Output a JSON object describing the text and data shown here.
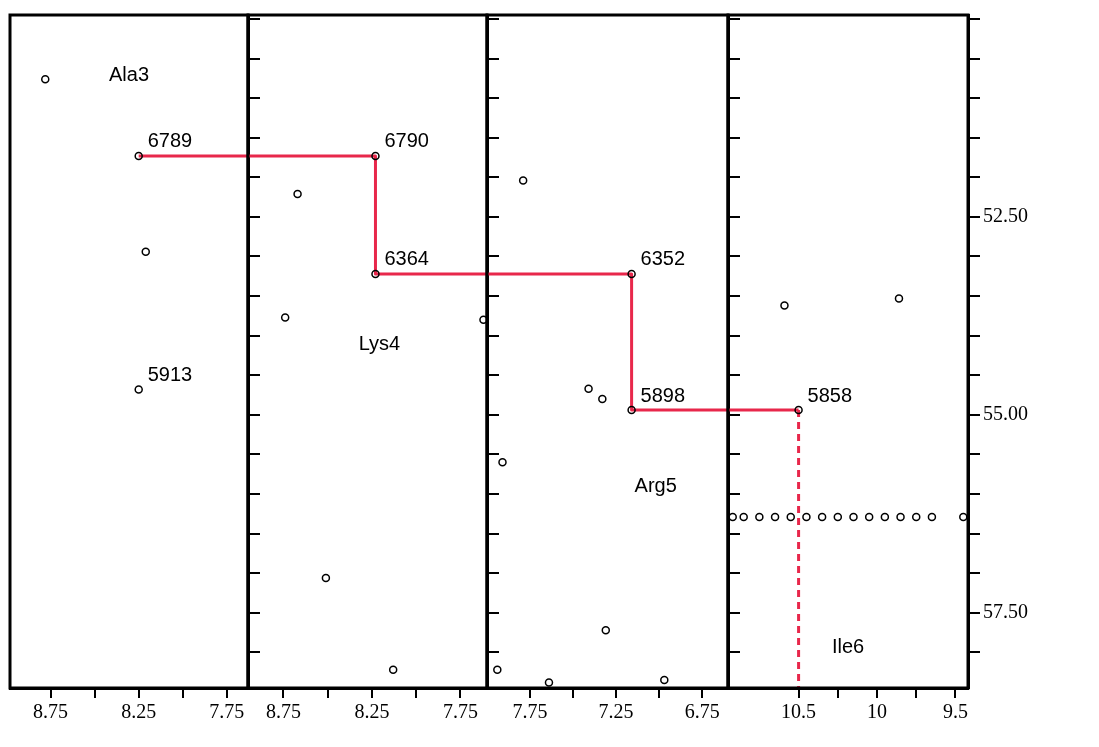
{
  "chart_data": [
    {
      "type": "scatter",
      "xlim": [
        8.98,
        7.63
      ],
      "ylim": [
        58.45,
        49.95
      ],
      "xticks": [
        8.75,
        {
          "value": 8.5,
          "label": null
        },
        8.25,
        {
          "value": 8.0,
          "label": null
        },
        7.75
      ],
      "yticks": [
        {
          "value": 50.0,
          "label": null
        },
        {
          "value": 50.5,
          "label": null
        },
        {
          "value": 51.0,
          "label": null
        },
        {
          "value": 51.5,
          "label": null
        },
        {
          "value": 52.0,
          "label": null
        },
        {
          "value": 52.5,
          "label": null
        },
        {
          "value": 53.0,
          "label": null
        },
        {
          "value": 53.5,
          "label": null
        },
        {
          "value": 54.0,
          "label": null
        },
        {
          "value": 54.5,
          "label": null
        },
        {
          "value": 55.0,
          "label": null
        },
        {
          "value": 55.5,
          "label": null
        },
        {
          "value": 56.0,
          "label": null
        },
        {
          "value": 56.5,
          "label": null
        },
        {
          "value": 57.0,
          "label": null
        },
        {
          "value": 57.5,
          "label": null
        },
        {
          "value": 58.0,
          "label": null
        }
      ],
      "tick_labels": "x",
      "grid": false,
      "legend": false,
      "series": [
        {
          "marker": "circle",
          "color": "#000000",
          "x": [
            8.78,
            8.25,
            8.21,
            8.25
          ],
          "values": [
            50.76,
            51.73,
            52.94,
            54.68
          ]
        },
        {
          "type": "line",
          "marker": "none",
          "line_style": "solid",
          "color": "#e8274b",
          "x": [
            8.25,
            7.63
          ],
          "values": [
            51.73,
            51.73
          ]
        }
      ],
      "annotations": [
        "Ala3",
        {
          "text": "6789",
          "x": 8.25,
          "y": 51.73
        },
        {
          "text": "5913",
          "x": 8.25,
          "y": 54.68
        }
      ]
    },
    {
      "type": "scatter",
      "xlim": [
        8.95,
        7.6
      ],
      "ylim": [
        58.45,
        49.95
      ],
      "xticks": [
        8.75,
        {
          "value": 8.5,
          "label": null
        },
        8.25,
        {
          "value": 8.0,
          "label": null
        },
        7.75
      ],
      "yticks": [
        {
          "value": 50.0,
          "label": null
        },
        {
          "value": 50.5,
          "label": null
        },
        {
          "value": 51.0,
          "label": null
        },
        {
          "value": 51.5,
          "label": null
        },
        {
          "value": 52.0,
          "label": null
        },
        {
          "value": 52.5,
          "label": null
        },
        {
          "value": 53.0,
          "label": null
        },
        {
          "value": 53.5,
          "label": null
        },
        {
          "value": 54.0,
          "label": null
        },
        {
          "value": 54.5,
          "label": null
        },
        {
          "value": 55.0,
          "label": null
        },
        {
          "value": 55.5,
          "label": null
        },
        {
          "value": 56.0,
          "label": null
        },
        {
          "value": 56.5,
          "label": null
        },
        {
          "value": 57.0,
          "label": null
        },
        {
          "value": 57.5,
          "label": null
        },
        {
          "value": 58.0,
          "label": null
        }
      ],
      "tick_labels": "x",
      "grid": false,
      "legend": false,
      "series": [
        {
          "marker": "circle",
          "color": "#000000",
          "x": [
            8.23,
            8.67,
            8.23,
            8.74,
            8.51,
            8.13,
            7.62
          ],
          "values": [
            51.73,
            52.21,
            53.22,
            53.77,
            57.06,
            58.22,
            53.8
          ]
        },
        {
          "type": "line",
          "marker": "none",
          "line_style": "solid",
          "color": "#e8274b",
          "x": [
            8.95,
            8.23,
            8.23,
            7.6
          ],
          "values": [
            51.73,
            51.73,
            53.22,
            53.22
          ]
        }
      ],
      "annotations": [
        {
          "text": "6790",
          "x": 8.23,
          "y": 51.73
        },
        {
          "text": "6364",
          "x": 8.23,
          "y": 53.22
        },
        "Lys4"
      ]
    },
    {
      "type": "scatter",
      "xlim": [
        8.0,
        6.6
      ],
      "ylim": [
        58.45,
        49.95
      ],
      "xticks": [
        7.75,
        {
          "value": 7.5,
          "label": null
        },
        7.25,
        {
          "value": 7.0,
          "label": null
        },
        6.75
      ],
      "yticks": [
        {
          "value": 50.0,
          "label": null
        },
        {
          "value": 50.5,
          "label": null
        },
        {
          "value": 51.0,
          "label": null
        },
        {
          "value": 51.5,
          "label": null
        },
        {
          "value": 52.0,
          "label": null
        },
        {
          "value": 52.5,
          "label": null
        },
        {
          "value": 53.0,
          "label": null
        },
        {
          "value": 53.5,
          "label": null
        },
        {
          "value": 54.0,
          "label": null
        },
        {
          "value": 54.5,
          "label": null
        },
        {
          "value": 55.0,
          "label": null
        },
        {
          "value": 55.5,
          "label": null
        },
        {
          "value": 56.0,
          "label": null
        },
        {
          "value": 56.5,
          "label": null
        },
        {
          "value": 57.0,
          "label": null
        },
        {
          "value": 57.5,
          "label": null
        },
        {
          "value": 58.0,
          "label": null
        }
      ],
      "tick_labels": "x",
      "grid": false,
      "legend": false,
      "series": [
        {
          "marker": "circle",
          "color": "#000000",
          "x": [
            7.79,
            7.91,
            7.41,
            7.33,
            7.16,
            7.16,
            7.31,
            7.94,
            7.64,
            6.97
          ],
          "values": [
            52.04,
            55.6,
            54.67,
            54.8,
            53.22,
            54.94,
            57.72,
            58.22,
            58.38,
            58.35
          ]
        },
        {
          "type": "line",
          "marker": "none",
          "line_style": "solid",
          "color": "#e8274b",
          "x": [
            8.0,
            7.16,
            7.16,
            6.6
          ],
          "values": [
            53.22,
            53.22,
            54.94,
            54.94
          ]
        }
      ],
      "annotations": [
        {
          "text": "6352",
          "x": 7.16,
          "y": 53.22
        },
        {
          "text": "5898",
          "x": 7.16,
          "y": 54.94
        },
        "Arg5"
      ]
    },
    {
      "type": "scatter",
      "xlim": [
        10.95,
        9.42
      ],
      "ylim": [
        58.45,
        49.95
      ],
      "xticks": [
        10.5,
        {
          "value": 10.25,
          "label": null
        },
        10.0,
        {
          "value": 9.75,
          "label": null
        },
        9.5
      ],
      "yticks": [
        {
          "value": 50.0,
          "label": null
        },
        {
          "value": 50.5,
          "label": null
        },
        {
          "value": 51.0,
          "label": null
        },
        {
          "value": 51.5,
          "label": null
        },
        {
          "value": 52.0,
          "label": null
        },
        {
          "value": 52.5,
          "label": "52.50"
        },
        {
          "value": 53.0,
          "label": null
        },
        {
          "value": 53.5,
          "label": null
        },
        {
          "value": 54.0,
          "label": null
        },
        {
          "value": 54.5,
          "label": null
        },
        {
          "value": 55.0,
          "label": "55.00"
        },
        {
          "value": 55.5,
          "label": null
        },
        {
          "value": 56.0,
          "label": null
        },
        {
          "value": 56.5,
          "label": null
        },
        {
          "value": 57.0,
          "label": null
        },
        {
          "value": 57.5,
          "label": "57.50"
        },
        {
          "value": 58.0,
          "label": null
        }
      ],
      "grid": false,
      "legend": false,
      "series": [
        {
          "marker": "circle",
          "color": "#000000",
          "x": [
            10.5,
            10.59,
            9.86,
            10.92,
            10.85,
            10.75,
            10.65,
            10.55,
            10.45,
            10.35,
            10.25,
            10.15,
            10.05,
            9.95,
            9.85,
            9.75,
            9.65,
            9.45
          ],
          "values": [
            54.94,
            53.62,
            53.53,
            56.29,
            56.29,
            56.29,
            56.29,
            56.29,
            56.29,
            56.29,
            56.29,
            56.29,
            56.29,
            56.29,
            56.29,
            56.29,
            56.29,
            56.29
          ]
        },
        {
          "type": "line",
          "marker": "none",
          "line_style": "solid",
          "color": "#e8274b",
          "x": [
            10.95,
            10.5
          ],
          "values": [
            54.94,
            54.94
          ]
        },
        {
          "type": "line",
          "marker": "none",
          "line_style": "dashed",
          "color": "#e8274b",
          "x": [
            10.5,
            10.5
          ],
          "values": [
            54.94,
            58.45
          ]
        }
      ],
      "annotations": [
        {
          "text": "5858",
          "x": 10.5,
          "y": 54.94
        },
        "Ile6"
      ]
    }
  ]
}
